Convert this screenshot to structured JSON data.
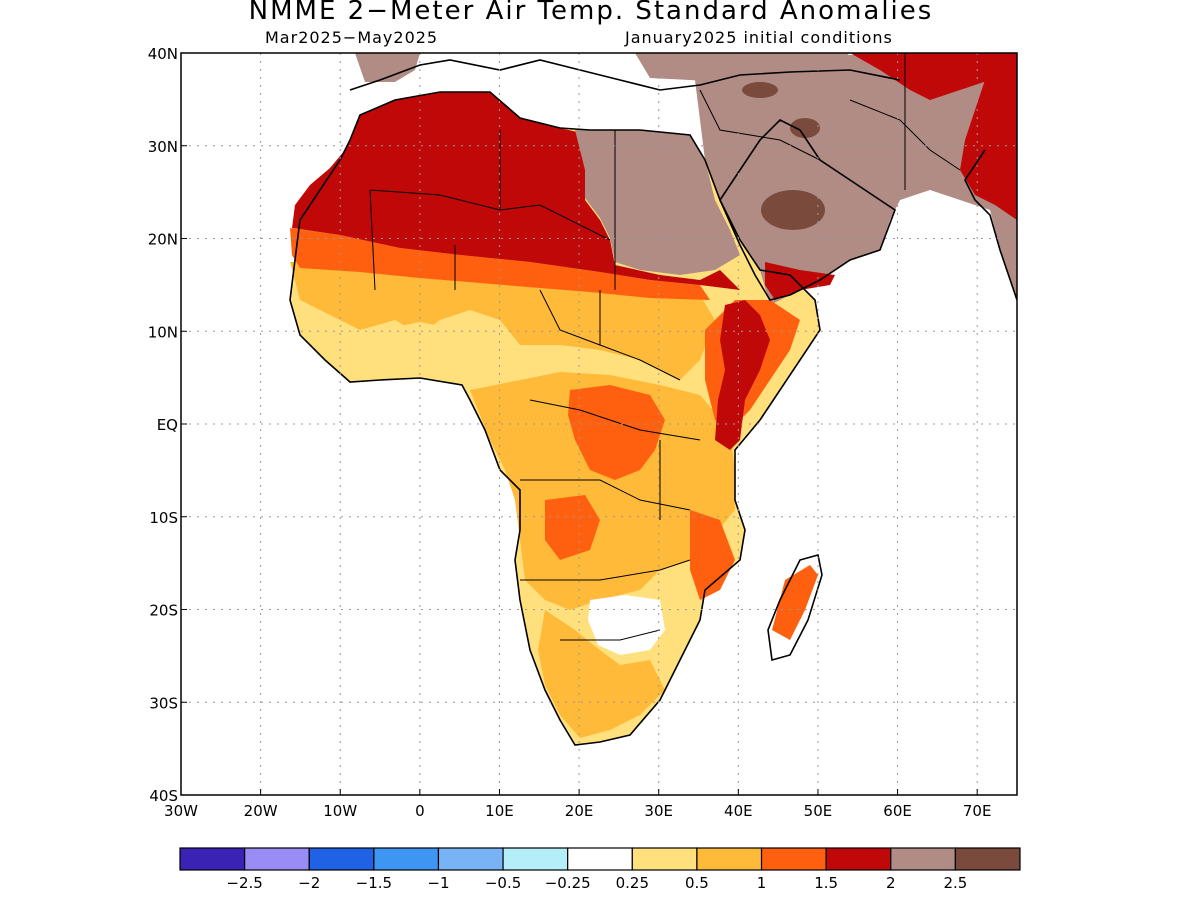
{
  "title": "NMME 2−Meter Air Temp. Standard Anomalies",
  "subtitle_left": "Mar2025−May2025",
  "subtitle_right": "January2025 initial conditions",
  "axes": {
    "lon_ticks": [
      "30W",
      "20W",
      "10W",
      "0",
      "10E",
      "20E",
      "30E",
      "40E",
      "50E",
      "60E",
      "70E"
    ],
    "lat_ticks": [
      "40N",
      "30N",
      "20N",
      "10N",
      "EQ",
      "10S",
      "20S",
      "30S",
      "40S"
    ],
    "lon_range": [
      -30,
      75
    ],
    "lat_range": [
      -40,
      40
    ],
    "grid": "dotted"
  },
  "colorbar": {
    "colors": [
      "#3a22b4",
      "#9a8cf5",
      "#2062e6",
      "#3f96f2",
      "#78b4f5",
      "#b4eef8",
      "#ffffff",
      "#ffe07c",
      "#ffba3a",
      "#ff6010",
      "#c00808",
      "#b08c84",
      "#7a4a3c"
    ],
    "labels": [
      "−2.5",
      "−2",
      "−1.5",
      "−1",
      "−0.5",
      "−0.25",
      "0.25",
      "0.5",
      "1",
      "1.5",
      "2",
      "2.5"
    ]
  },
  "colors": {
    "above_0_25": "#ffe07c",
    "above_0_5": "#ffba3a",
    "above_1": "#ff6010",
    "above_1_5": "#c00808",
    "above_2": "#b08c84",
    "above_2_5": "#7a4a3c"
  }
}
